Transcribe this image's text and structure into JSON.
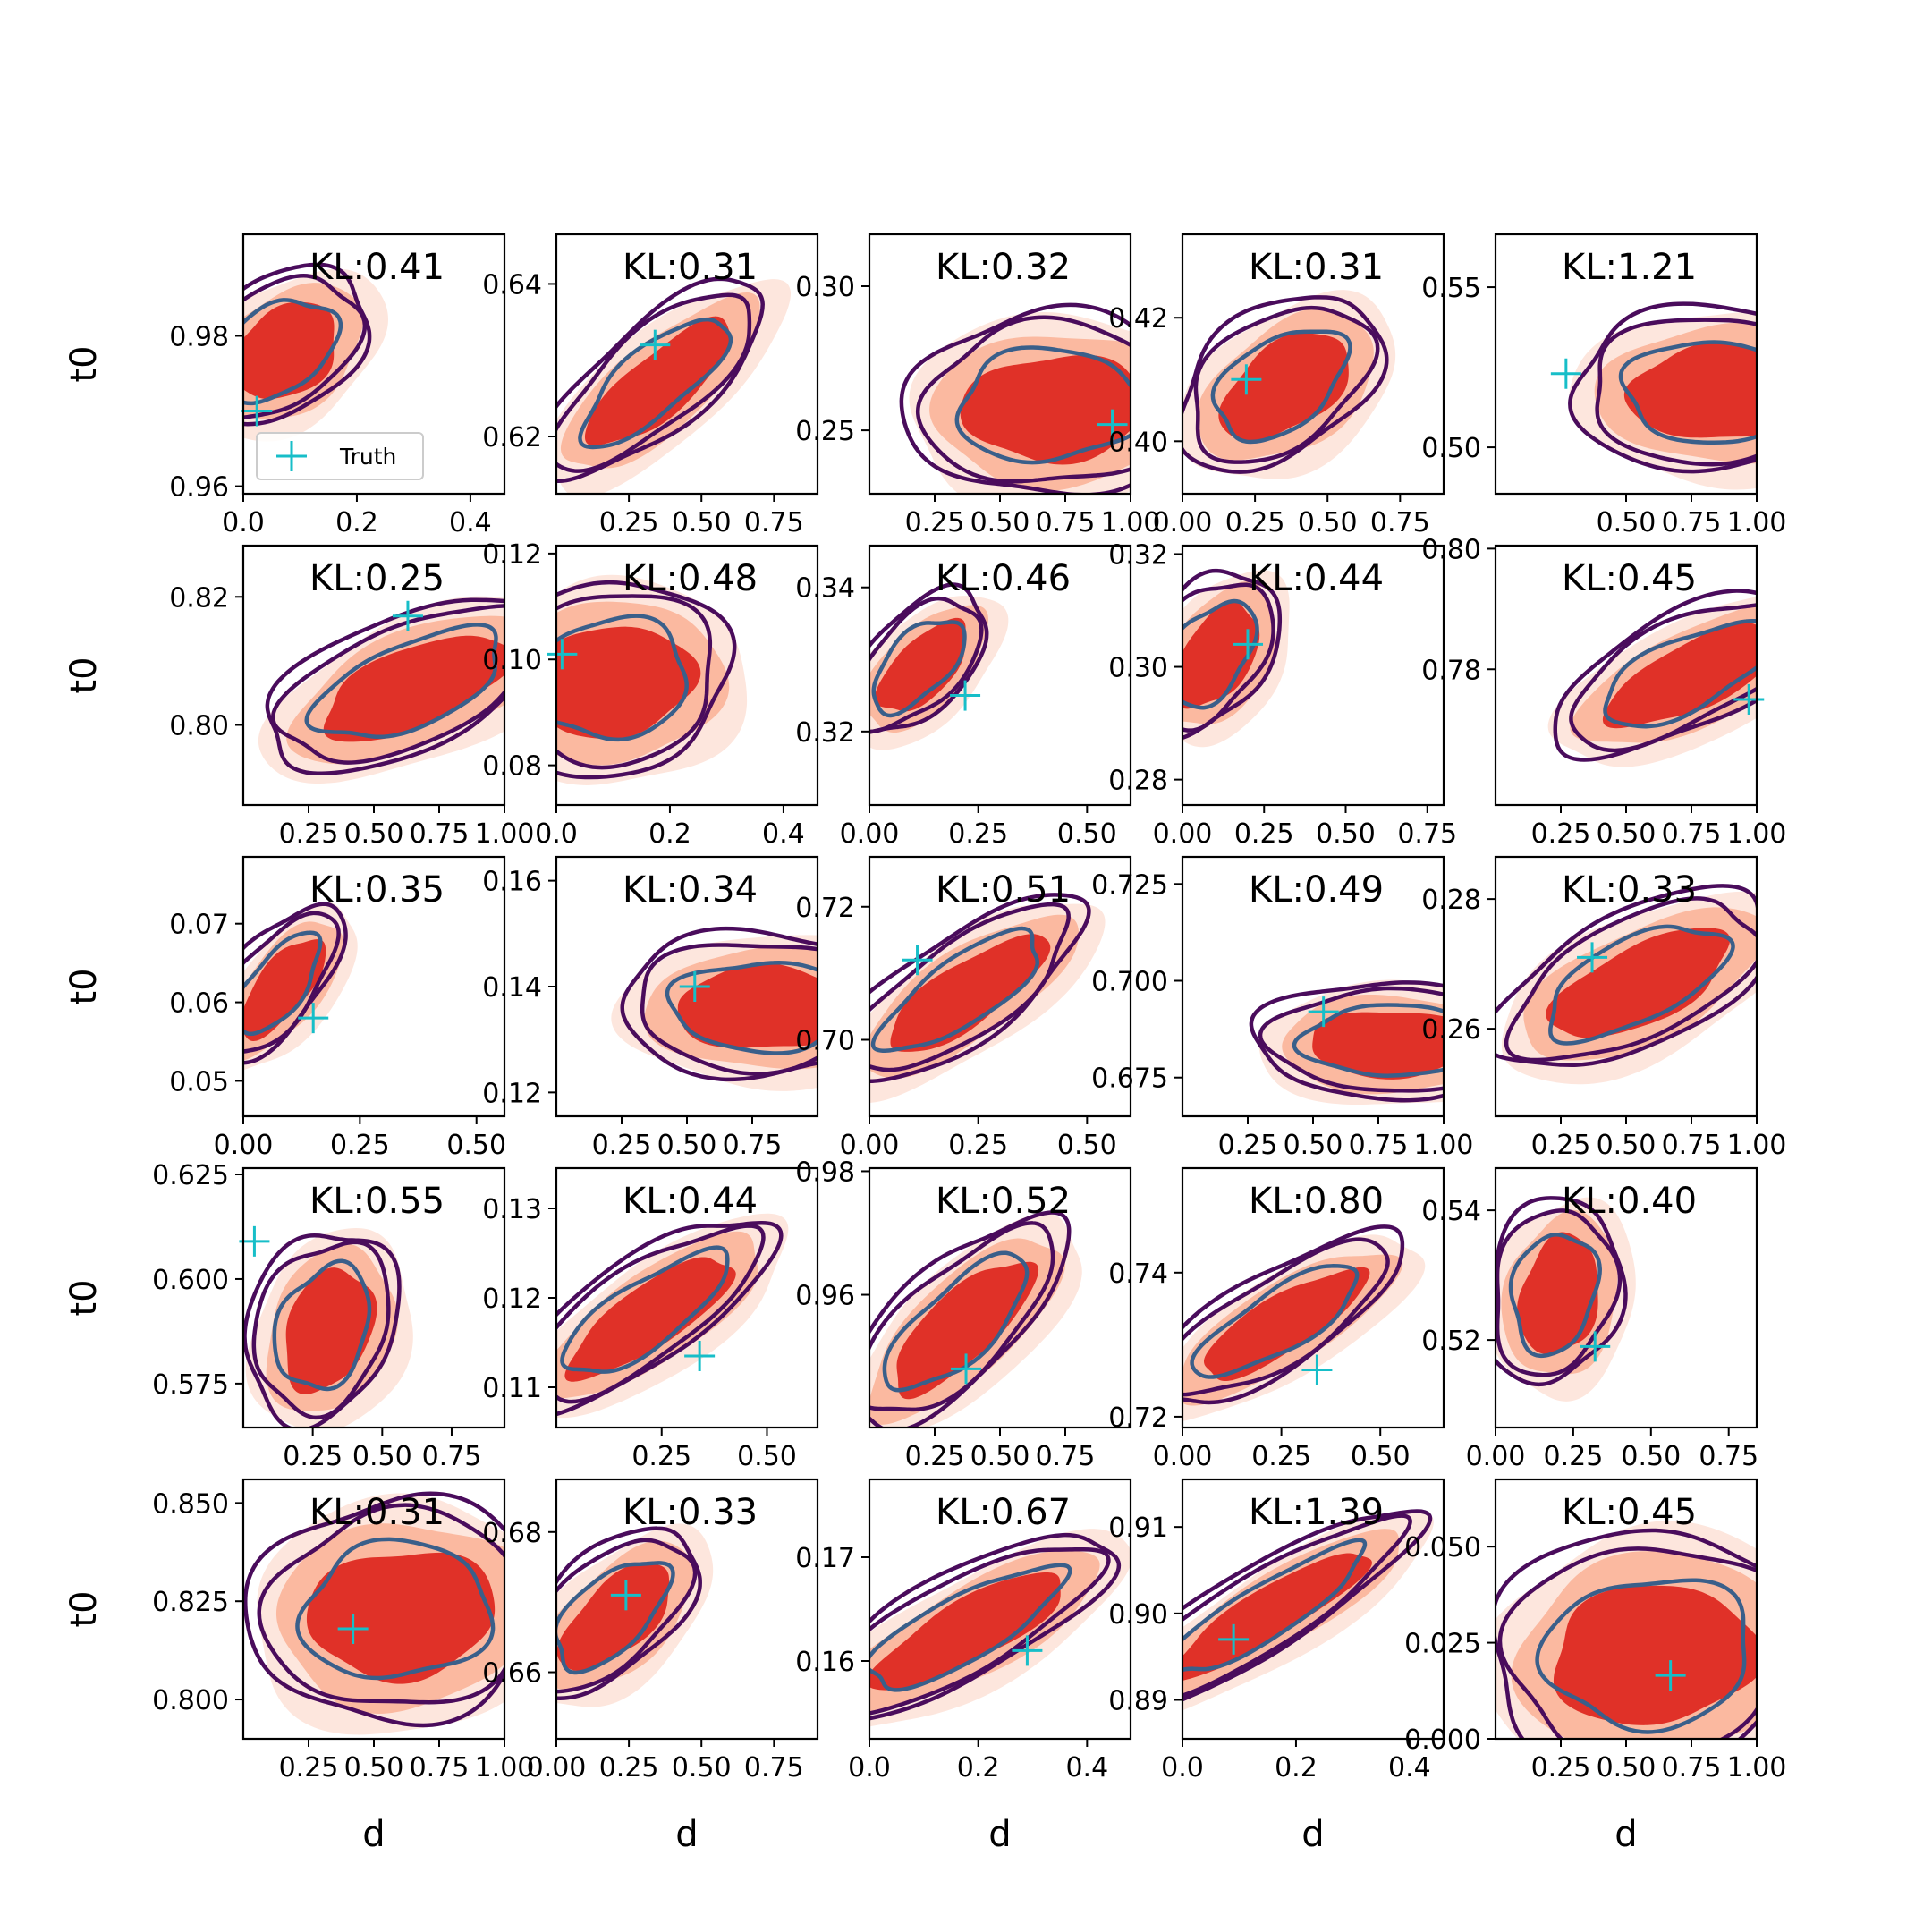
{
  "legend_label": "Truth",
  "colors": {
    "outer_contour": "#4a0c5c",
    "inner_contour": "#3a5f8a",
    "fill_level_1": "#fde6dd",
    "fill_level_2": "#fbb9a0",
    "fill_level_3": "#e03128",
    "truth_marker": "#17bec8"
  },
  "chart_data": [
    {
      "type": "contour",
      "title": "KL:0.41",
      "xlabel": "",
      "ylabel": "t0",
      "xlim": [
        0.0,
        0.46
      ],
      "ylim": [
        0.959,
        0.9935
      ],
      "xticks": [
        0.0,
        0.2,
        0.4
      ],
      "yticks": [
        0.96,
        0.98
      ],
      "xtick_labels": [
        "0.0",
        "0.2",
        "0.4"
      ],
      "ytick_labels": [
        "0.96",
        "0.98"
      ],
      "truth": [
        0.024,
        0.97
      ],
      "posterior_mode": [
        0.07,
        0.978
      ],
      "legend": "Truth"
    },
    {
      "type": "contour",
      "title": "KL:0.31",
      "xlabel": "",
      "ylabel": "",
      "xlim": [
        0.0,
        0.9
      ],
      "ylim": [
        0.6125,
        0.6465
      ],
      "xticks": [
        0.25,
        0.5,
        0.75
      ],
      "yticks": [
        0.62,
        0.64
      ],
      "xtick_labels": [
        "0.25",
        "0.50",
        "0.75"
      ],
      "ytick_labels": [
        "0.62",
        "0.64"
      ],
      "truth": [
        0.34,
        0.632
      ],
      "posterior_mode": [
        0.35,
        0.627
      ]
    },
    {
      "type": "contour",
      "title": "KL:0.32",
      "xlabel": "",
      "ylabel": "",
      "xlim": [
        0.0,
        1.0
      ],
      "ylim": [
        0.228,
        0.318
      ],
      "xticks": [
        0.25,
        0.5,
        0.75,
        1.0
      ],
      "yticks": [
        0.25,
        0.3
      ],
      "xtick_labels": [
        "0.25",
        "0.50",
        "0.75",
        "1.00"
      ],
      "ytick_labels": [
        "0.25",
        "0.30"
      ],
      "truth": [
        0.93,
        0.252
      ],
      "posterior_mode": [
        0.7,
        0.258
      ]
    },
    {
      "type": "contour",
      "title": "KL:0.31",
      "xlabel": "",
      "ylabel": "",
      "xlim": [
        0.0,
        0.9
      ],
      "ylim": [
        0.3915,
        0.4335
      ],
      "xticks": [
        0.0,
        0.25,
        0.5,
        0.75
      ],
      "yticks": [
        0.4,
        0.42
      ],
      "xtick_labels": [
        "0.00",
        "0.25",
        "0.50",
        "0.75"
      ],
      "ytick_labels": [
        "0.40",
        "0.42"
      ],
      "truth": [
        0.22,
        0.41
      ],
      "posterior_mode": [
        0.35,
        0.409
      ]
    },
    {
      "type": "contour",
      "title": "KL:1.21",
      "xlabel": "",
      "ylabel": "",
      "xlim": [
        0.0,
        1.0
      ],
      "ylim": [
        0.4855,
        0.5665
      ],
      "xticks": [
        0.5,
        0.75,
        1.0
      ],
      "yticks": [
        0.5,
        0.55
      ],
      "xtick_labels": [
        "0.50",
        "0.75",
        "1.00"
      ],
      "ytick_labels": [
        "0.50",
        "0.55"
      ],
      "truth": [
        0.27,
        0.523
      ],
      "posterior_mode": [
        0.85,
        0.517
      ]
    },
    {
      "type": "contour",
      "title": "KL:0.25",
      "xlabel": "",
      "ylabel": "t0",
      "xlim": [
        0.0,
        1.0
      ],
      "ylim": [
        0.7875,
        0.828
      ],
      "xticks": [
        0.25,
        0.5,
        0.75,
        1.0
      ],
      "yticks": [
        0.8,
        0.82
      ],
      "xtick_labels": [
        "0.25",
        "0.50",
        "0.75",
        "1.00"
      ],
      "ytick_labels": [
        "0.80",
        "0.82"
      ],
      "truth": [
        0.63,
        0.817
      ],
      "posterior_mode": [
        0.65,
        0.806
      ]
    },
    {
      "type": "contour",
      "title": "KL:0.48",
      "xlabel": "",
      "ylabel": "",
      "xlim": [
        0.0,
        0.46
      ],
      "ylim": [
        0.0725,
        0.1215
      ],
      "xticks": [
        0.0,
        0.2,
        0.4
      ],
      "yticks": [
        0.08,
        0.1,
        0.12
      ],
      "xtick_labels": [
        "0.0",
        "0.2",
        "0.4"
      ],
      "ytick_labels": [
        "0.08",
        "0.10",
        "0.12"
      ],
      "truth": [
        0.01,
        0.101
      ],
      "posterior_mode": [
        0.1,
        0.096
      ]
    },
    {
      "type": "contour",
      "title": "KL:0.46",
      "xlabel": "",
      "ylabel": "",
      "xlim": [
        0.0,
        0.6
      ],
      "ylim": [
        0.3098,
        0.3458
      ],
      "xticks": [
        0.0,
        0.25,
        0.5
      ],
      "yticks": [
        0.32,
        0.34
      ],
      "xtick_labels": [
        "0.00",
        "0.25",
        "0.50"
      ],
      "ytick_labels": [
        "0.32",
        "0.34"
      ],
      "truth": [
        0.22,
        0.325
      ],
      "posterior_mode": [
        0.12,
        0.329
      ]
    },
    {
      "type": "contour",
      "title": "KL:0.44",
      "xlabel": "",
      "ylabel": "",
      "xlim": [
        0.0,
        0.8
      ],
      "ylim": [
        0.2755,
        0.3215
      ],
      "xticks": [
        0.0,
        0.25,
        0.5,
        0.75
      ],
      "yticks": [
        0.28,
        0.3,
        0.32
      ],
      "xtick_labels": [
        "0.00",
        "0.25",
        "0.50",
        "0.75"
      ],
      "ytick_labels": [
        "0.28",
        "0.30",
        "0.32"
      ],
      "truth": [
        0.2,
        0.304
      ],
      "posterior_mode": [
        0.1,
        0.302
      ]
    },
    {
      "type": "contour",
      "title": "KL:0.45",
      "xlabel": "",
      "ylabel": "",
      "xlim": [
        0.0,
        1.0
      ],
      "ylim": [
        0.7575,
        0.8005
      ],
      "xticks": [
        0.25,
        0.5,
        0.75,
        1.0
      ],
      "yticks": [
        0.78,
        0.8
      ],
      "xtick_labels": [
        "0.25",
        "0.50",
        "0.75",
        "1.00"
      ],
      "ytick_labels": [
        "0.78",
        "0.80"
      ],
      "truth": [
        0.97,
        0.775
      ],
      "posterior_mode": [
        0.75,
        0.779
      ]
    },
    {
      "type": "contour",
      "title": "KL:0.35",
      "xlabel": "",
      "ylabel": "t0",
      "xlim": [
        0.0,
        0.56
      ],
      "ylim": [
        0.0455,
        0.0785
      ],
      "xticks": [
        0.0,
        0.25,
        0.5
      ],
      "yticks": [
        0.05,
        0.06,
        0.07
      ],
      "xtick_labels": [
        "0.00",
        "0.25",
        "0.50"
      ],
      "ytick_labels": [
        "0.05",
        "0.06",
        "0.07"
      ],
      "truth": [
        0.15,
        0.058
      ],
      "posterior_mode": [
        0.08,
        0.062
      ]
    },
    {
      "type": "contour",
      "title": "KL:0.34",
      "xlabel": "",
      "ylabel": "",
      "xlim": [
        0.0,
        1.0
      ],
      "ylim": [
        0.1155,
        0.1645
      ],
      "xticks": [
        0.25,
        0.5,
        0.75
      ],
      "yticks": [
        0.12,
        0.14,
        0.16
      ],
      "xtick_labels": [
        "0.25",
        "0.50",
        "0.75"
      ],
      "ytick_labels": [
        "0.12",
        "0.14",
        "0.16"
      ],
      "truth": [
        0.53,
        0.14
      ],
      "posterior_mode": [
        0.8,
        0.136
      ]
    },
    {
      "type": "contour",
      "title": "KL:0.51",
      "xlabel": "",
      "ylabel": "",
      "xlim": [
        0.0,
        0.6
      ],
      "ylim": [
        0.6885,
        0.7275
      ],
      "xticks": [
        0.0,
        0.25,
        0.5
      ],
      "yticks": [
        0.7,
        0.72
      ],
      "xtick_labels": [
        "0.00",
        "0.25",
        "0.50"
      ],
      "ytick_labels": [
        "0.70",
        "0.72"
      ],
      "truth": [
        0.11,
        0.712
      ],
      "posterior_mode": [
        0.22,
        0.707
      ]
    },
    {
      "type": "contour",
      "title": "KL:0.49",
      "xlabel": "",
      "ylabel": "",
      "xlim": [
        0.0,
        1.0
      ],
      "ylim": [
        0.665,
        0.732
      ],
      "xticks": [
        0.25,
        0.5,
        0.75,
        1.0
      ],
      "yticks": [
        0.675,
        0.7,
        0.725
      ],
      "xtick_labels": [
        "0.25",
        "0.50",
        "0.75",
        "1.00"
      ],
      "ytick_labels": [
        "0.675",
        "0.700",
        "0.725"
      ],
      "truth": [
        0.54,
        0.692
      ],
      "posterior_mode": [
        0.8,
        0.684
      ]
    },
    {
      "type": "contour",
      "title": "KL:0.33",
      "xlabel": "",
      "ylabel": "",
      "xlim": [
        0.0,
        1.0
      ],
      "ylim": [
        0.2465,
        0.2865
      ],
      "xticks": [
        0.25,
        0.5,
        0.75,
        1.0
      ],
      "yticks": [
        0.26,
        0.28
      ],
      "xtick_labels": [
        "0.25",
        "0.50",
        "0.75",
        "1.00"
      ],
      "ytick_labels": [
        "0.26",
        "0.28"
      ],
      "truth": [
        0.37,
        0.271
      ],
      "posterior_mode": [
        0.55,
        0.267
      ]
    },
    {
      "type": "contour",
      "title": "KL:0.55",
      "xlabel": "",
      "ylabel": "t0",
      "xlim": [
        0.0,
        0.94
      ],
      "ylim": [
        0.5645,
        0.6265
      ],
      "xticks": [
        0.25,
        0.5,
        0.75
      ],
      "yticks": [
        0.575,
        0.6,
        0.625
      ],
      "xtick_labels": [
        "0.25",
        "0.50",
        "0.75"
      ],
      "ytick_labels": [
        "0.575",
        "0.600",
        "0.625"
      ],
      "truth": [
        0.04,
        0.609
      ],
      "posterior_mode": [
        0.3,
        0.588
      ]
    },
    {
      "type": "contour",
      "title": "KL:0.44",
      "xlabel": "",
      "ylabel": "",
      "xlim": [
        0.0,
        0.62
      ],
      "ylim": [
        0.1055,
        0.1345
      ],
      "xticks": [
        0.25,
        0.5
      ],
      "yticks": [
        0.11,
        0.12,
        0.13
      ],
      "xtick_labels": [
        "0.25",
        "0.50"
      ],
      "ytick_labels": [
        "0.11",
        "0.12",
        "0.13"
      ],
      "truth": [
        0.34,
        0.1135
      ],
      "posterior_mode": [
        0.22,
        0.118
      ]
    },
    {
      "type": "contour",
      "title": "KL:0.52",
      "xlabel": "",
      "ylabel": "",
      "xlim": [
        0.0,
        1.0
      ],
      "ylim": [
        0.9385,
        0.9805
      ],
      "xticks": [
        0.25,
        0.5,
        0.75
      ],
      "yticks": [
        0.96,
        0.98
      ],
      "xtick_labels": [
        "0.25",
        "0.50",
        "0.75"
      ],
      "ytick_labels": [
        "0.96",
        "0.98"
      ],
      "truth": [
        0.37,
        0.948
      ],
      "posterior_mode": [
        0.35,
        0.955
      ]
    },
    {
      "type": "contour",
      "title": "KL:0.80",
      "xlabel": "",
      "ylabel": "",
      "xlim": [
        0.0,
        0.66
      ],
      "ylim": [
        0.7185,
        0.7545
      ],
      "xticks": [
        0.0,
        0.25,
        0.5
      ],
      "yticks": [
        0.72,
        0.74
      ],
      "xtick_labels": [
        "0.00",
        "0.25",
        "0.50"
      ],
      "ytick_labels": [
        "0.72",
        "0.74"
      ],
      "truth": [
        0.34,
        0.7265
      ],
      "posterior_mode": [
        0.25,
        0.733
      ]
    },
    {
      "type": "contour",
      "title": "KL:0.40",
      "xlabel": "",
      "ylabel": "",
      "xlim": [
        0.0,
        0.84
      ],
      "ylim": [
        0.5065,
        0.5465
      ],
      "xticks": [
        0.0,
        0.25,
        0.5,
        0.75
      ],
      "yticks": [
        0.52,
        0.54
      ],
      "xtick_labels": [
        "0.00",
        "0.25",
        "0.50",
        "0.75"
      ],
      "ytick_labels": [
        "0.52",
        "0.54"
      ],
      "truth": [
        0.32,
        0.519
      ],
      "posterior_mode": [
        0.2,
        0.527
      ]
    },
    {
      "type": "contour",
      "title": "KL:0.31",
      "xlabel": "d",
      "ylabel": "t0",
      "xlim": [
        0.0,
        1.0
      ],
      "ylim": [
        0.79,
        0.856
      ],
      "xticks": [
        0.25,
        0.5,
        0.75,
        1.0
      ],
      "yticks": [
        0.8,
        0.825,
        0.85
      ],
      "xtick_labels": [
        "0.25",
        "0.50",
        "0.75",
        "1.00"
      ],
      "ytick_labels": [
        "0.800",
        "0.825",
        "0.850"
      ],
      "truth": [
        0.42,
        0.818
      ],
      "posterior_mode": [
        0.6,
        0.822
      ]
    },
    {
      "type": "contour",
      "title": "KL:0.33",
      "xlabel": "d",
      "ylabel": "",
      "xlim": [
        0.0,
        0.9
      ],
      "ylim": [
        0.6505,
        0.6875
      ],
      "xticks": [
        0.0,
        0.25,
        0.5,
        0.75
      ],
      "yticks": [
        0.66,
        0.68
      ],
      "xtick_labels": [
        "0.00",
        "0.25",
        "0.50",
        "0.75"
      ],
      "ytick_labels": [
        "0.66",
        "0.68"
      ],
      "truth": [
        0.24,
        0.671
      ],
      "posterior_mode": [
        0.2,
        0.668
      ]
    },
    {
      "type": "contour",
      "title": "KL:0.67",
      "xlabel": "d",
      "ylabel": "",
      "xlim": [
        0.0,
        0.48
      ],
      "ylim": [
        0.1525,
        0.1775
      ],
      "xticks": [
        0.0,
        0.2,
        0.4
      ],
      "yticks": [
        0.16,
        0.17
      ],
      "xtick_labels": [
        "0.0",
        "0.2",
        "0.4"
      ],
      "ytick_labels": [
        "0.16",
        "0.17"
      ],
      "truth": [
        0.29,
        0.161
      ],
      "posterior_mode": [
        0.18,
        0.163
      ]
    },
    {
      "type": "contour",
      "title": "KL:1.39",
      "xlabel": "d",
      "ylabel": "",
      "xlim": [
        0.0,
        0.46
      ],
      "ylim": [
        0.8855,
        0.9155
      ],
      "xticks": [
        0.0,
        0.2,
        0.4
      ],
      "yticks": [
        0.89,
        0.9,
        0.91
      ],
      "xtick_labels": [
        "0.0",
        "0.2",
        "0.4"
      ],
      "ytick_labels": [
        "0.89",
        "0.90",
        "0.91"
      ],
      "truth": [
        0.09,
        0.897
      ],
      "posterior_mode": [
        0.15,
        0.9
      ]
    },
    {
      "type": "contour",
      "title": "KL:0.45",
      "xlabel": "d",
      "ylabel": "",
      "xlim": [
        0.0,
        1.0
      ],
      "ylim": [
        0.0,
        0.0675
      ],
      "xticks": [
        0.25,
        0.5,
        0.75,
        1.0
      ],
      "yticks": [
        0.0,
        0.025,
        0.05
      ],
      "xtick_labels": [
        "0.25",
        "0.50",
        "0.75",
        "1.00"
      ],
      "ytick_labels": [
        "0.000",
        "0.025",
        "0.050"
      ],
      "truth": [
        0.67,
        0.0165
      ],
      "posterior_mode": [
        0.6,
        0.022
      ]
    }
  ]
}
